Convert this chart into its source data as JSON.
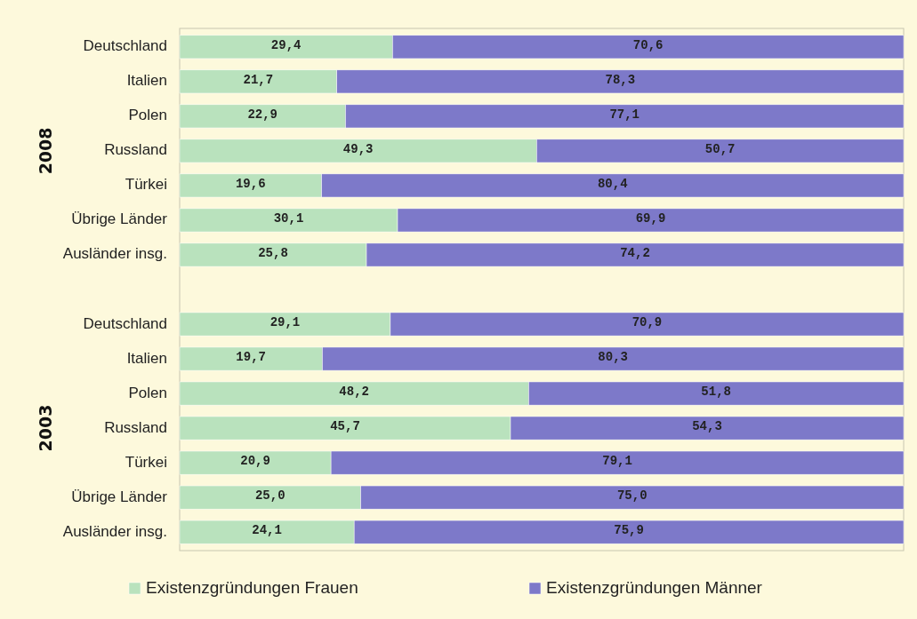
{
  "chart_data": {
    "type": "bar",
    "orientation": "horizontal",
    "stacked": true,
    "categories": [
      "Deutschland",
      "Italien",
      "Polen",
      "Russland",
      "Türkei",
      "Übrige Länder",
      "Ausländer insg.",
      null,
      "Deutschland",
      "Italien",
      "Polen",
      "Russland",
      "Türkei",
      "Übrige Länder",
      "Ausländer insg."
    ],
    "series": [
      {
        "name": "Existenzgründungen Frauen",
        "color": "#b9e2bd",
        "values": [
          29.4,
          21.7,
          22.9,
          49.3,
          19.6,
          30.1,
          25.8,
          null,
          29.1,
          19.7,
          48.2,
          45.7,
          20.9,
          25.0,
          24.1
        ],
        "value_labels": [
          "29,4",
          "21,7",
          "22,9",
          "49,3",
          "19,6",
          "30,1",
          "25,8",
          null,
          "29,1",
          "19,7",
          "48,2",
          "45,7",
          "20,9",
          "25,0",
          "24,1"
        ]
      },
      {
        "name": "Existenzgründungen Männer",
        "color": "#7d79c9",
        "values": [
          70.6,
          78.3,
          77.1,
          50.7,
          80.4,
          69.9,
          74.2,
          null,
          70.9,
          80.3,
          51.8,
          54.3,
          79.1,
          75.0,
          75.9
        ],
        "value_labels": [
          "70,6",
          "78,3",
          "77,1",
          "50,7",
          "80,4",
          "69,9",
          "74,2",
          null,
          "70,9",
          "80,3",
          "51,8",
          "54,3",
          "79,1",
          "75,0",
          "75,9"
        ]
      }
    ],
    "xlim": [
      0,
      100
    ],
    "tick_labels": "y",
    "legend": "bottom",
    "grid": false,
    "annotations": [
      "2008",
      "2003"
    ]
  }
}
